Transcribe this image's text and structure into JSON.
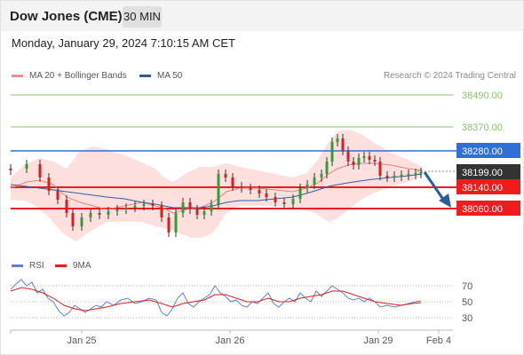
{
  "header": {
    "title": "Dow Jones (CME)",
    "timeframe": "30 MIN"
  },
  "timestamp": "Monday, January 29, 2024 7:10:15 AM CET",
  "legend": {
    "bollinger_label": "MA 20 + Bollinger Bands",
    "ma50_label": "MA 50",
    "credit": "Research © 2024 Trading Central",
    "bollinger_color": "#f28b82",
    "ma50_color": "#2e5d9e"
  },
  "price_levels": [
    {
      "label": "38490.00",
      "kind": "resistance-green",
      "color": "#8ac36a"
    },
    {
      "label": "38370.00",
      "kind": "resistance-green",
      "color": "#8ac36a"
    },
    {
      "label": "38280.00",
      "kind": "resistance-blue",
      "color": "#2f6fd6"
    },
    {
      "label": "38199.00",
      "kind": "last-price",
      "color": "#333333"
    },
    {
      "label": "38140.00",
      "kind": "support-red",
      "color": "#ee1c1c"
    },
    {
      "label": "38060.00",
      "kind": "support-red",
      "color": "#ee1c1c"
    }
  ],
  "rsi": {
    "rsi_label": "RSI",
    "ma_label": "9MA",
    "rsi_color": "#5b80d6",
    "ma_color": "#e0201c",
    "levels": [
      "70",
      "50",
      "30"
    ]
  },
  "x_axis": [
    "Jan 25",
    "Jan 26",
    "Jan 29",
    "Feb 4"
  ]
}
